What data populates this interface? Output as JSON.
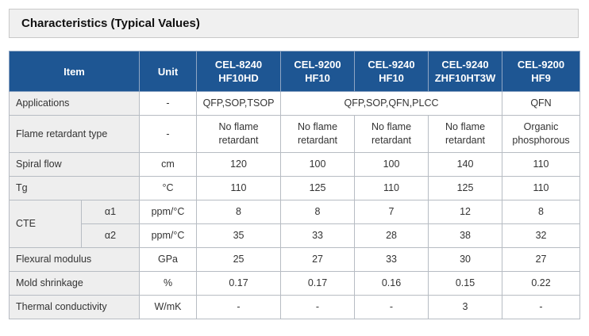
{
  "title": "Characteristics (Typical Values)",
  "header": {
    "item": "Item",
    "unit": "Unit",
    "columns": [
      {
        "line1": "CEL-8240",
        "line2": "HF10HD"
      },
      {
        "line1": "CEL-9200",
        "line2": "HF10"
      },
      {
        "line1": "CEL-9240",
        "line2": "HF10"
      },
      {
        "line1": "CEL-9240",
        "line2": "ZHF10HT3W"
      },
      {
        "line1": "CEL-9200",
        "line2": "HF9"
      }
    ]
  },
  "rows": {
    "applications": {
      "label": "Applications",
      "unit": "-",
      "c1": "QFP,SOP,TSOP",
      "c2_4": "QFP,SOP,QFN,PLCC",
      "c5": "QFN"
    },
    "flame": {
      "label": "Flame retardant type",
      "unit": "-",
      "values": [
        {
          "l1": "No flame",
          "l2": "retardant"
        },
        {
          "l1": "No flame",
          "l2": "retardant"
        },
        {
          "l1": "No flame",
          "l2": "retardant"
        },
        {
          "l1": "No flame",
          "l2": "retardant"
        },
        {
          "l1": "Organic",
          "l2": "phosphorous"
        }
      ]
    },
    "spiral": {
      "label": "Spiral flow",
      "unit": "cm",
      "values": [
        "120",
        "100",
        "100",
        "140",
        "110"
      ]
    },
    "tg": {
      "label": "Tg",
      "unit": "°C",
      "values": [
        "110",
        "125",
        "110",
        "125",
        "110"
      ]
    },
    "cte": {
      "label": "CTE",
      "a1": {
        "sub": "α1",
        "unit": "ppm/°C",
        "values": [
          "8",
          "8",
          "7",
          "12",
          "8"
        ]
      },
      "a2": {
        "sub": "α2",
        "unit": "ppm/°C",
        "values": [
          "35",
          "33",
          "28",
          "38",
          "32"
        ]
      }
    },
    "flexural": {
      "label": "Flexural modulus",
      "unit": "GPa",
      "values": [
        "25",
        "27",
        "33",
        "30",
        "27"
      ]
    },
    "mold": {
      "label": "Mold shrinkage",
      "unit": "%",
      "values": [
        "0.17",
        "0.17",
        "0.16",
        "0.15",
        "0.22"
      ]
    },
    "thermal": {
      "label": "Thermal conductivity",
      "unit": "W/mK",
      "values": [
        "-",
        "-",
        "-",
        "3",
        "-"
      ]
    }
  }
}
